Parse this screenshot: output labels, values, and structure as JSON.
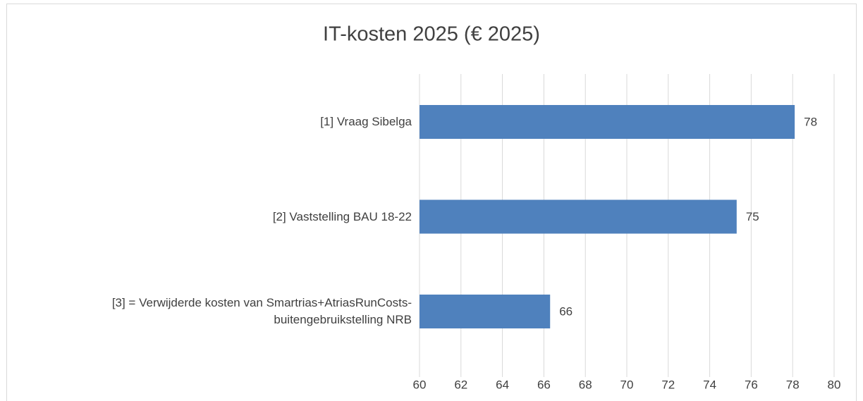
{
  "chart_data": {
    "type": "bar",
    "orientation": "horizontal",
    "title": "IT-kosten 2025 (€ 2025)",
    "categories": [
      "[1] Vraag Sibelga",
      "[2] Vaststelling BAU 18-22",
      "[3] = Verwijderde kosten van Smartrias+AtriasRunCosts-\nbuitengebruikstelling NRB"
    ],
    "values": [
      78.1,
      75.3,
      66.3
    ],
    "value_labels": [
      "78",
      "75",
      "66"
    ],
    "color": "#4f81bd",
    "xlim": [
      60,
      80
    ],
    "xticks": [
      60,
      62,
      64,
      66,
      68,
      70,
      72,
      74,
      76,
      78,
      80
    ],
    "grid": true
  }
}
